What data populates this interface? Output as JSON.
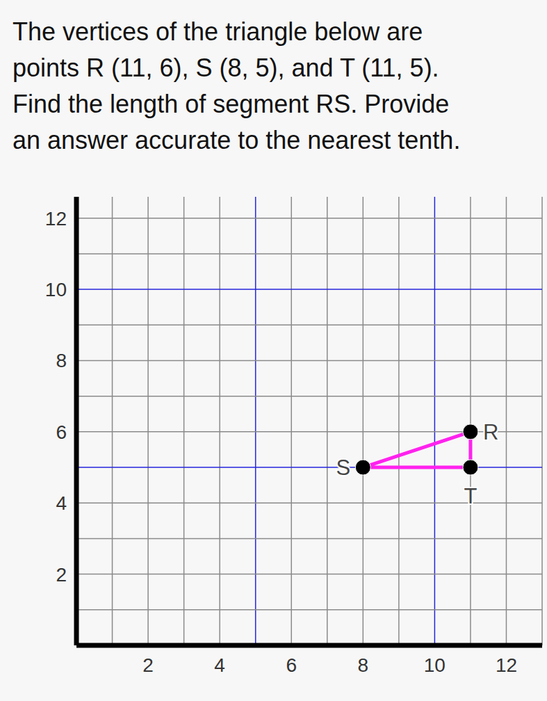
{
  "chart_data": {
    "type": "scatter",
    "title": "The vertices of the triangle below are\npoints R (11, 6), S (8, 5), and T (11, 5).\nFind the length of segment RS. Provide\nan answer accurate to the nearest tenth.",
    "points": [
      {
        "label": "R",
        "x": 11,
        "y": 6
      },
      {
        "label": "S",
        "x": 8,
        "y": 5
      },
      {
        "label": "T",
        "x": 11,
        "y": 5
      }
    ],
    "color": "#ff22ee",
    "marker": "circle",
    "xlim": [
      0,
      13
    ],
    "ylim": [
      0,
      12.6
    ],
    "xticks": [
      2,
      4,
      6,
      8,
      10,
      12
    ],
    "yticks": [
      2,
      4,
      6,
      8,
      10,
      12
    ],
    "grid": true
  }
}
